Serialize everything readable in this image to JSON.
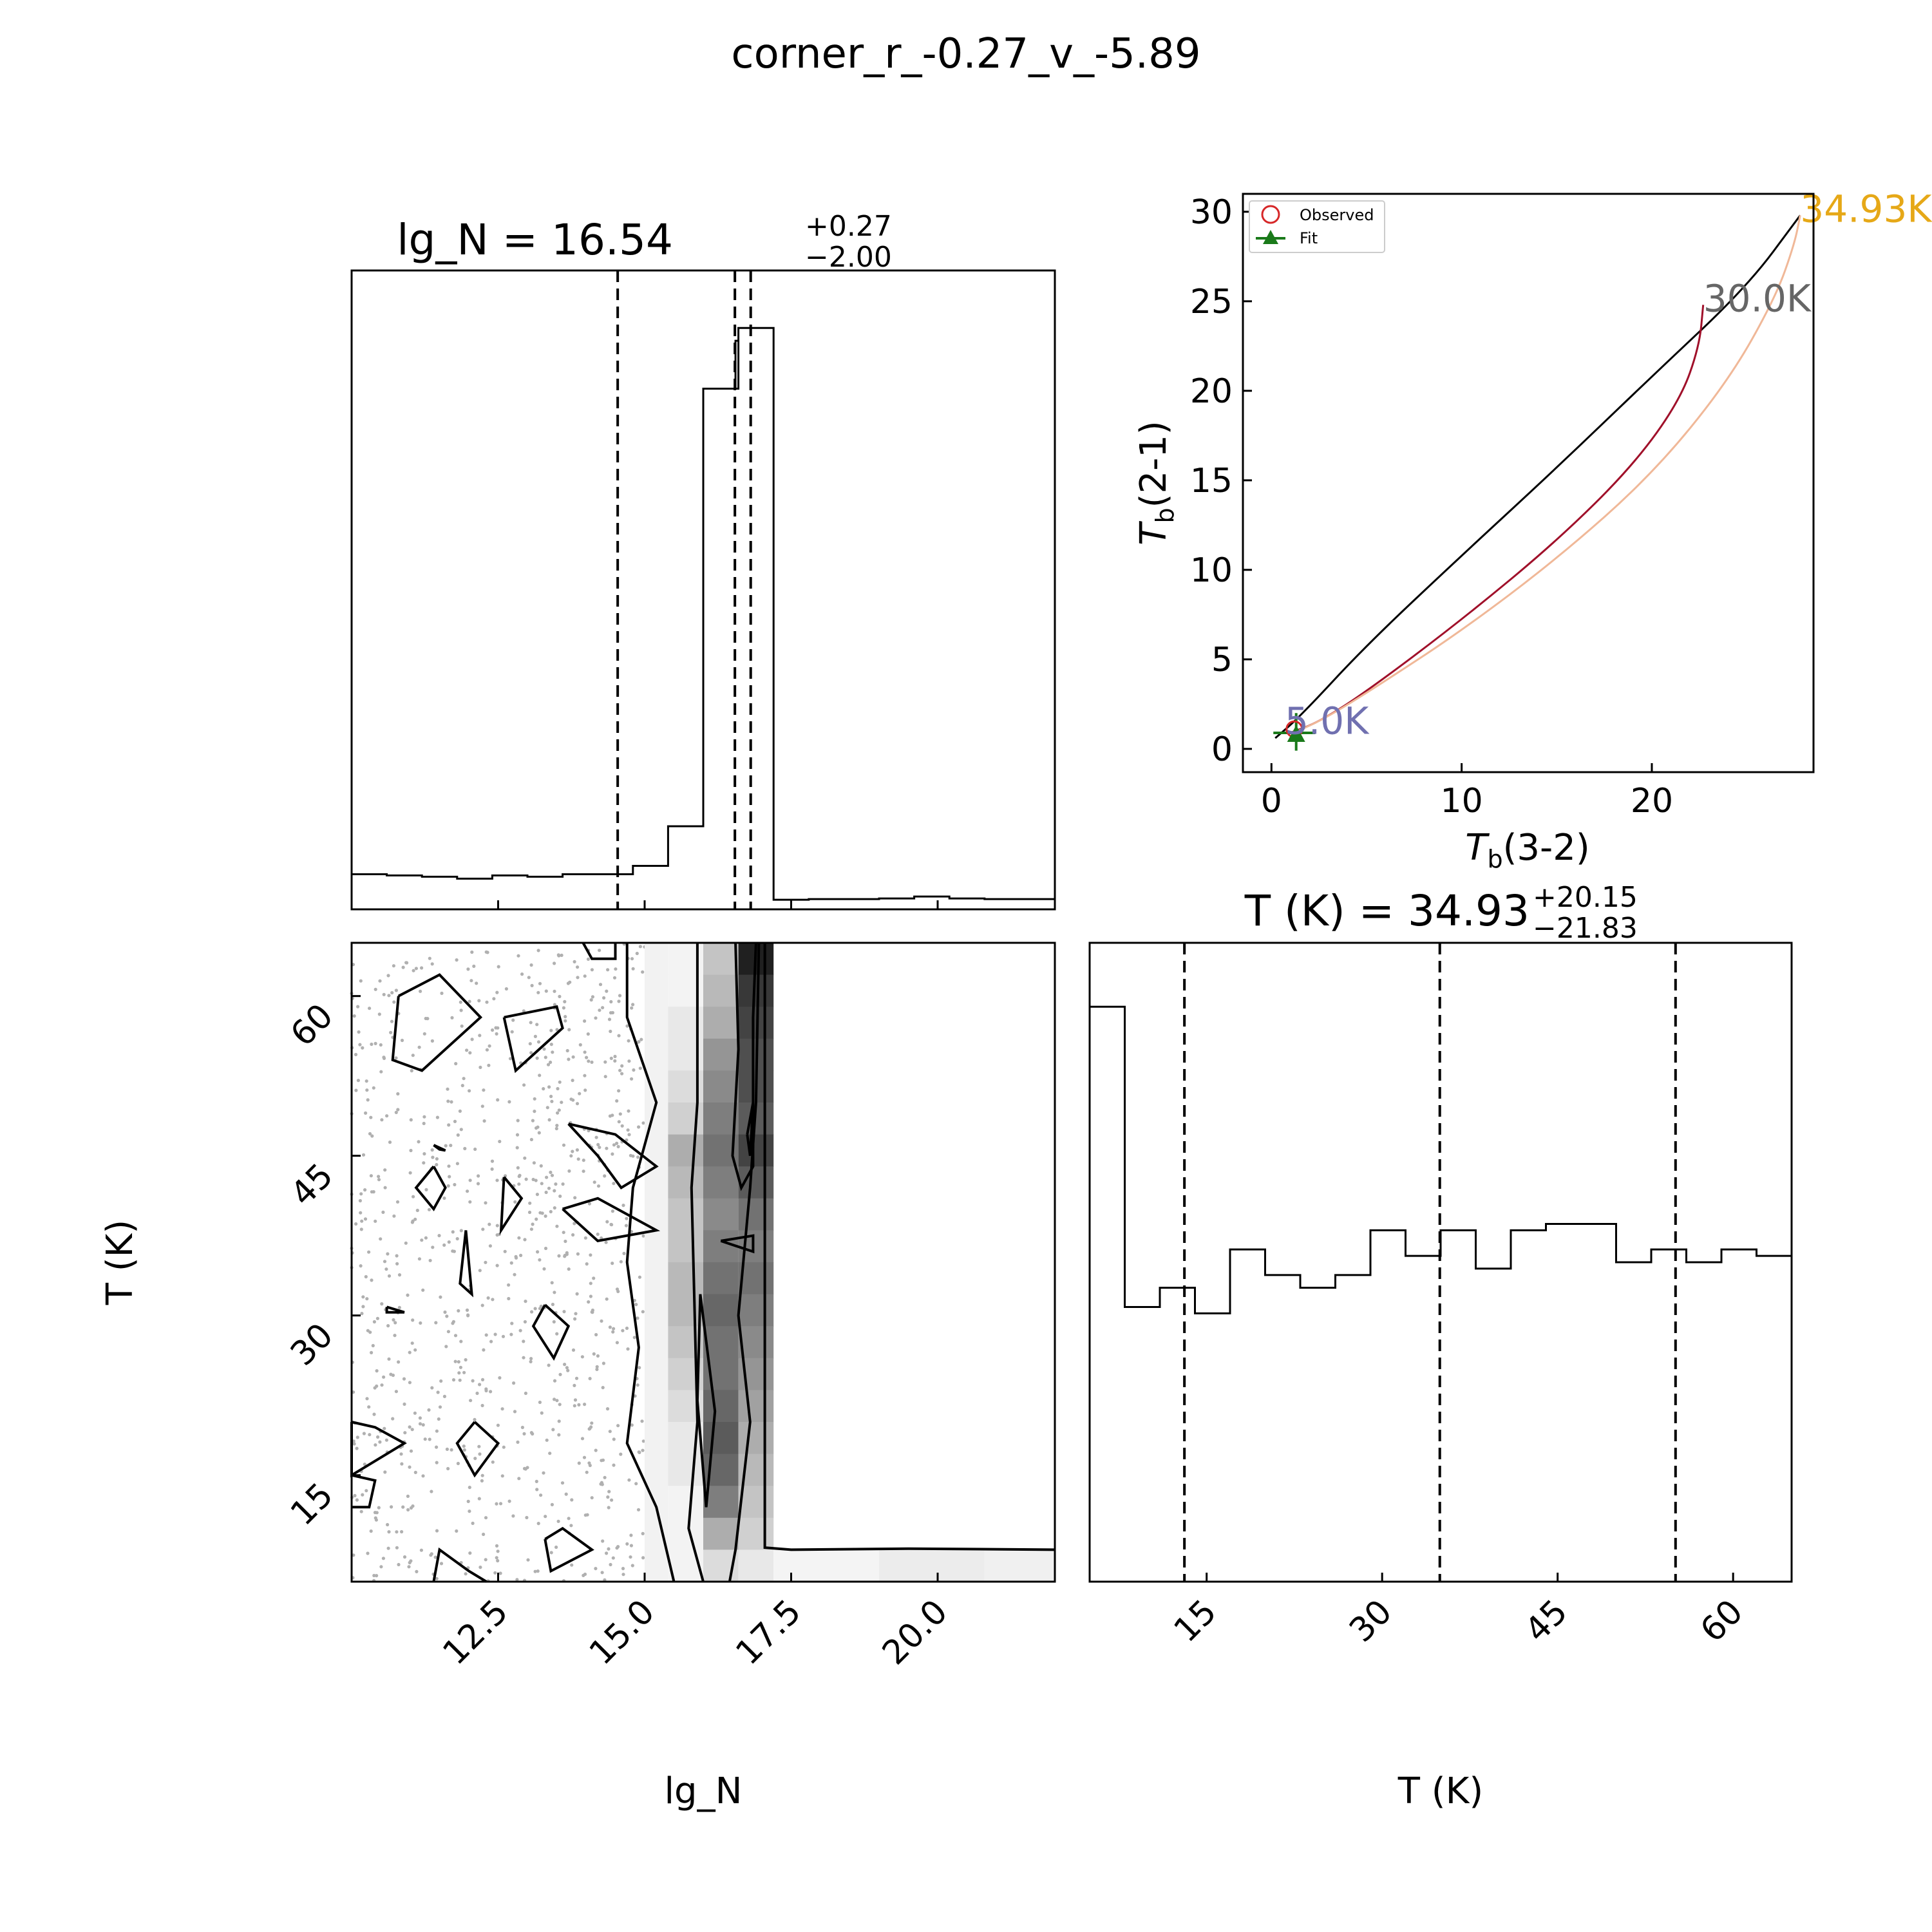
{
  "figure_title": "corner_r_-0.27_v_-5.89",
  "colors": {
    "hot_curve": "#e6a817",
    "mid_curve": "#666666",
    "cold_curve": "#7070b0",
    "observed": "#d62728",
    "fit": "#1a7a1a",
    "red_line": "#a0102a",
    "peach_line": "#f0b898"
  },
  "chart_data": [
    {
      "panel": "lg_N marginal histogram",
      "type": "bar",
      "title_main": "lg_N = 16.54",
      "title_sup": "+0.27",
      "title_sub": "−2.00",
      "xlim": [
        10,
        22
      ],
      "ylim": [
        0,
        1
      ],
      "bin_edges": [
        10,
        10.6,
        11.2,
        11.8,
        12.4,
        13.0,
        13.6,
        14.2,
        14.8,
        15.4,
        16.0,
        16.6,
        17.2,
        17.8,
        18.4,
        19.0,
        19.6,
        20.2,
        20.8,
        21.4,
        22.0
      ],
      "counts": [
        0.055,
        0.053,
        0.051,
        0.048,
        0.053,
        0.051,
        0.055,
        0.055,
        0.068,
        0.13,
        0.815,
        0.91,
        0.015,
        0.016,
        0.016,
        0.017,
        0.02,
        0.017,
        0.016,
        0.016
      ],
      "step_detail": {
        "x": 16.55,
        "value": 0.89
      },
      "quantiles": [
        14.54,
        16.54,
        16.81
      ]
    },
    {
      "panel": "lg_N vs T (K) 2D histogram",
      "type": "heatmap",
      "xlabel": "lg_N",
      "ylabel": "T (K)",
      "xlim": [
        10,
        22
      ],
      "ylim": [
        5,
        65
      ],
      "x_ticks": [
        "12.5",
        "15.0",
        "17.5",
        "20.0"
      ],
      "y_ticks": [
        "15",
        "30",
        "45",
        "60"
      ],
      "dense_columns": [
        {
          "x": [
            15.4,
            16.0
          ],
          "rows_top_to_bottom": [
            0.05,
            0.05,
            0.1,
            0.1,
            0.15,
            0.2,
            0.35,
            0.3,
            0.25,
            0.25,
            0.3,
            0.3,
            0.25,
            0.2,
            0.15,
            0.1,
            0.1,
            0.05,
            0.05,
            0.05
          ]
        },
        {
          "x": [
            16.0,
            16.6
          ],
          "rows_top_to_bottom": [
            0.25,
            0.3,
            0.35,
            0.45,
            0.5,
            0.55,
            0.6,
            0.55,
            0.5,
            0.55,
            0.6,
            0.65,
            0.6,
            0.6,
            0.65,
            0.7,
            0.65,
            0.55,
            0.35,
            0.15
          ]
        },
        {
          "x": [
            16.6,
            17.2
          ],
          "rows_top_to_bottom": [
            0.95,
            0.85,
            0.8,
            0.75,
            0.75,
            0.7,
            0.8,
            0.7,
            0.6,
            0.55,
            0.6,
            0.55,
            0.5,
            0.45,
            0.4,
            0.35,
            0.3,
            0.25,
            0.2,
            0.1
          ]
        }
      ],
      "low_band_T": [
        5,
        8
      ],
      "contour_levels": [
        "outer",
        "middle",
        "inner"
      ]
    },
    {
      "panel": "T (K) marginal histogram",
      "type": "bar",
      "title_main": "T (K) = 34.93",
      "title_sup": "+20.15",
      "title_sub": "−21.83",
      "xlabel": "T (K)",
      "xlim": [
        5,
        65
      ],
      "ylim": [
        0,
        1
      ],
      "x_ticks": [
        "15",
        "30",
        "45",
        "60"
      ],
      "bin_edges": [
        5,
        8,
        11,
        14,
        17,
        20,
        23,
        26,
        29,
        32,
        35,
        38,
        41,
        44,
        47,
        50,
        53,
        56,
        59,
        62,
        65
      ],
      "counts": [
        0.9,
        0.43,
        0.46,
        0.42,
        0.52,
        0.48,
        0.46,
        0.48,
        0.55,
        0.51,
        0.55,
        0.49,
        0.55,
        0.56,
        0.56,
        0.5,
        0.52,
        0.5,
        0.52,
        0.51
      ],
      "quantiles": [
        13.1,
        34.93,
        55.08
      ]
    },
    {
      "panel": "brightness temperature ratio",
      "type": "line",
      "xlabel_main": "T",
      "xlabel_sub": "b",
      "xlabel_rest": "(3-2)",
      "ylabel_main": "T",
      "ylabel_sub": "b",
      "ylabel_rest": "(2-1)",
      "xlim": [
        -1.5,
        28.5
      ],
      "ylim": [
        -1.3,
        31
      ],
      "x_ticks": [
        "0",
        "10",
        "20"
      ],
      "y_ticks": [
        "0",
        "5",
        "10",
        "15",
        "20",
        "25",
        "30"
      ],
      "legend": [
        "Observed",
        "Fit"
      ],
      "legend_position": "top-left",
      "annotations": [
        {
          "text": "34.93K",
          "x": 27.8,
          "y": 29.8
        },
        {
          "text": "30.0K",
          "x": 22.7,
          "y": 24.8
        },
        {
          "text": "5.0K",
          "x": 0.7,
          "y": 1.2
        }
      ],
      "series": [
        {
          "points": [
            [
              0.2,
              0.6
            ],
            [
              1.5,
              1.8
            ],
            [
              5,
              5.8
            ],
            [
              10,
              10.8
            ],
            [
              15,
              15.7
            ],
            [
              20,
              20.8
            ],
            [
              25,
              25.8
            ],
            [
              27.8,
              29.8
            ]
          ]
        },
        {
          "points": [
            [
              1.0,
              0.9
            ],
            [
              2.5,
              1.5
            ],
            [
              5,
              3.2
            ],
            [
              10,
              7.2
            ],
            [
              15,
              11.6
            ],
            [
              19,
              15.8
            ],
            [
              21.5,
              19.5
            ],
            [
              22.5,
              22.5
            ],
            [
              22.7,
              24.8
            ]
          ]
        },
        {
          "points": [
            [
              1.2,
              0.9
            ],
            [
              3,
              1.8
            ],
            [
              6,
              3.8
            ],
            [
              10,
              6.6
            ],
            [
              15,
              10.6
            ],
            [
              20,
              15.3
            ],
            [
              24,
              20.5
            ],
            [
              26.5,
              25.2
            ],
            [
              27.5,
              28.2
            ],
            [
              27.8,
              29.8
            ]
          ]
        }
      ],
      "observed_point": [
        1.2,
        1.1
      ],
      "fit_point": [
        1.3,
        0.75
      ],
      "fit_xerr": [
        0.1,
        2.3
      ]
    }
  ]
}
